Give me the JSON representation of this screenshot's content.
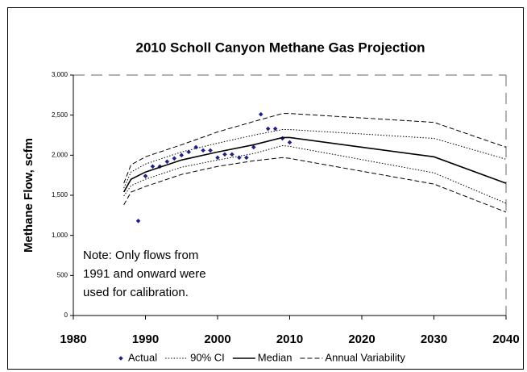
{
  "chart_data": {
    "type": "line",
    "title": "2010 Scholl Canyon Methane Gas Projection",
    "y_label": "Methane Flow, scfm",
    "note": [
      "Note: Only flows from",
      "1991 and onward were",
      "used for calibration."
    ],
    "xlim": [
      1980,
      2040
    ],
    "xticks": [
      1980,
      1990,
      2000,
      2010,
      2020,
      2030,
      2040
    ],
    "ylim": [
      0,
      3000
    ],
    "yticks": [
      0,
      500,
      {
        "value": 1000,
        "label": "1,000"
      },
      {
        "value": 1500,
        "label": "1,500"
      },
      {
        "value": 2000,
        "label": "2,000"
      },
      {
        "value": 2500,
        "label": "2,500"
      },
      {
        "value": 3000,
        "label": "3,000"
      }
    ],
    "legend": "bottom",
    "series": [
      {
        "name": "Actual",
        "style": "marker",
        "color": "#1f1f8f",
        "x": [
          1989,
          1990,
          1991,
          1992,
          1993,
          1994,
          1995,
          1996,
          1997,
          1998,
          1999,
          2000,
          2001,
          2002,
          2003,
          2004,
          2005,
          2006,
          2007,
          2008,
          2009,
          2010
        ],
        "values": [
          1180,
          1740,
          1860,
          1860,
          1920,
          1960,
          2000,
          2040,
          2100,
          2060,
          2060,
          1970,
          2010,
          2010,
          1970,
          1970,
          2100,
          2510,
          2330,
          2330,
          2210,
          2160
        ]
      },
      {
        "name": "90% CI",
        "style": "dotted",
        "color": "#000000",
        "x": [
          1987,
          1988,
          1990,
          1995,
          2000,
          2005,
          2009,
          2010,
          2030,
          2040
        ],
        "upper": [
          1590,
          1790,
          1890,
          2040,
          2150,
          2250,
          2320,
          2320,
          2210,
          1950
        ],
        "lower": [
          1490,
          1620,
          1700,
          1850,
          1940,
          2020,
          2120,
          2110,
          1780,
          1400
        ]
      },
      {
        "name": "Median",
        "style": "solid",
        "color": "#000000",
        "x": [
          1987,
          1988,
          1990,
          1995,
          2000,
          2005,
          2009,
          2010,
          2020,
          2030,
          2040
        ],
        "values": [
          1540,
          1700,
          1790,
          1940,
          2040,
          2130,
          2220,
          2220,
          2100,
          1980,
          1650
        ]
      },
      {
        "name": "Annual Variability",
        "style": "dashed",
        "color": "#000000",
        "x": [
          1987,
          1988,
          1990,
          1995,
          2000,
          2005,
          2009,
          2010,
          2030,
          2040
        ],
        "upper": [
          1650,
          1880,
          1980,
          2130,
          2290,
          2420,
          2520,
          2520,
          2410,
          2100
        ],
        "lower": [
          1380,
          1540,
          1610,
          1760,
          1860,
          1930,
          1970,
          1960,
          1640,
          1290
        ]
      }
    ]
  }
}
